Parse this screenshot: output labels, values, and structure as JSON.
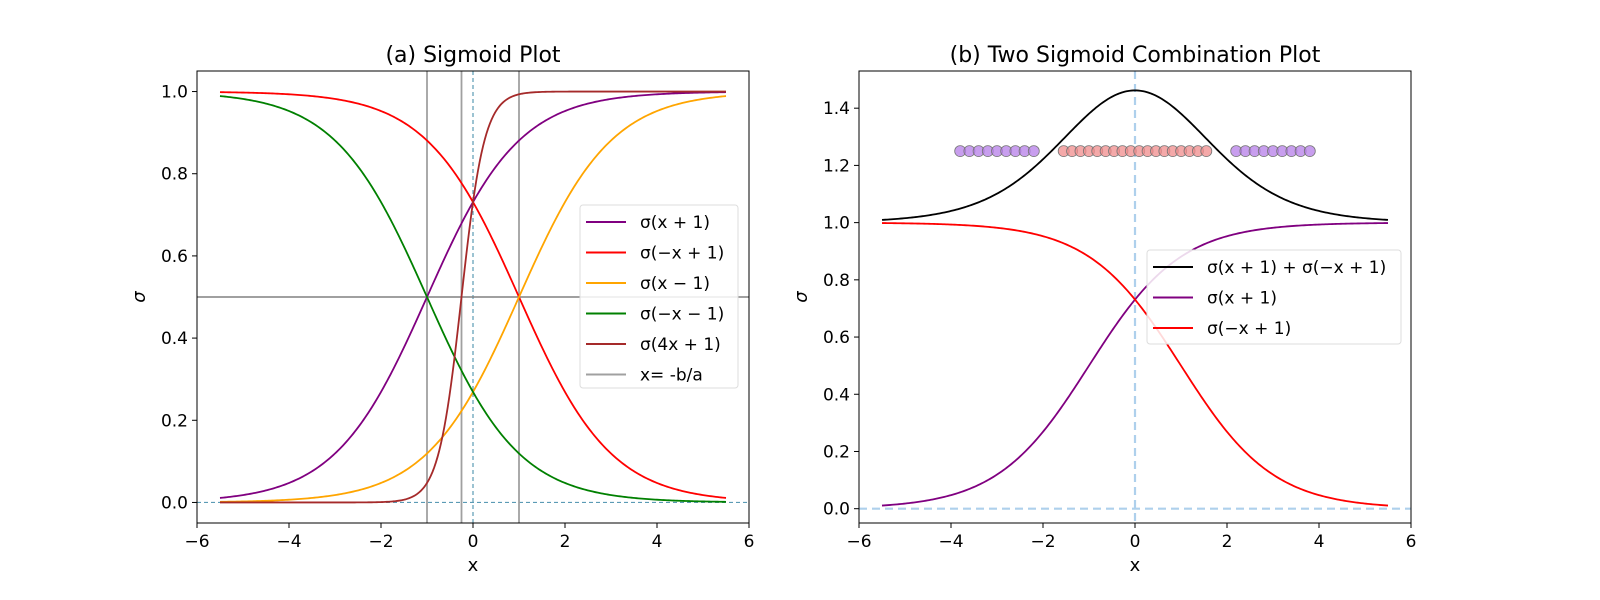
{
  "chart_data": [
    {
      "type": "line",
      "title": "(a) Sigmoid Plot",
      "xlabel": "x",
      "ylabel": "σ",
      "xlim": [
        -6,
        6
      ],
      "ylim": [
        -0.05,
        1.05
      ],
      "xticks": [
        -6,
        -4,
        -2,
        0,
        2,
        4,
        6
      ],
      "yticks": [
        0.0,
        0.2,
        0.4,
        0.6,
        0.8,
        1.0
      ],
      "xtick_labels": [
        "−6",
        "−4",
        "−2",
        "0",
        "2",
        "4",
        "6"
      ],
      "ytick_labels": [
        "0.0",
        "0.2",
        "0.4",
        "0.6",
        "0.8",
        "1.0"
      ],
      "x_range": [
        -5.5,
        5.5
      ],
      "series": [
        {
          "name": "σ(x + 1)",
          "a": 1,
          "b": 1,
          "color": "#800080"
        },
        {
          "name": "σ(−x + 1)",
          "a": -1,
          "b": 1,
          "color": "#ff0000"
        },
        {
          "name": "σ(x − 1)",
          "a": 1,
          "b": -1,
          "color": "#ffa500"
        },
        {
          "name": "σ(−x − 1)",
          "a": -1,
          "b": -1,
          "color": "#008000"
        },
        {
          "name": "σ(4x + 1)",
          "a": 4,
          "b": 1,
          "color": "#a52a2a"
        }
      ],
      "vlines": {
        "name": "x= -b/a",
        "x": [
          -1,
          -0.25,
          1
        ],
        "color": "#a0a0a0"
      },
      "hline": {
        "y": 0.5,
        "color": "#808080"
      },
      "reference_lines": {
        "x": 0,
        "y": 0,
        "color": "#5b9bb5",
        "style": "dashed"
      },
      "legend": "center-right"
    },
    {
      "type": "line",
      "title": "(b) Two Sigmoid Combination Plot",
      "xlabel": "x",
      "ylabel": "σ",
      "xlim": [
        -6,
        6
      ],
      "ylim": [
        -0.05,
        1.53
      ],
      "xticks": [
        -6,
        -4,
        -2,
        0,
        2,
        4,
        6
      ],
      "yticks": [
        0.0,
        0.2,
        0.4,
        0.6,
        0.8,
        1.0,
        1.2,
        1.4
      ],
      "xtick_labels": [
        "−6",
        "−4",
        "−2",
        "0",
        "2",
        "4",
        "6"
      ],
      "ytick_labels": [
        "0.0",
        "0.2",
        "0.4",
        "0.6",
        "0.8",
        "1.0",
        "1.2",
        "1.4"
      ],
      "x_range": [
        -5.5,
        5.5
      ],
      "series": [
        {
          "name": "σ(x + 1) + σ(−x + 1)",
          "sum": [
            [
              1,
              1
            ],
            [
              -1,
              1
            ]
          ],
          "color": "#000000"
        },
        {
          "name": "σ(x + 1)",
          "a": 1,
          "b": 1,
          "color": "#800080"
        },
        {
          "name": "σ(−x + 1)",
          "a": -1,
          "b": 1,
          "color": "#ff0000"
        }
      ],
      "scatter": [
        {
          "y": 1.25,
          "x_from": -3.8,
          "x_to": -2.2,
          "count": 9,
          "color": "#b57ee8"
        },
        {
          "y": 1.25,
          "x_from": -1.55,
          "x_to": 1.55,
          "count": 18,
          "color": "#f08c8c"
        },
        {
          "y": 1.25,
          "x_from": 2.2,
          "x_to": 3.8,
          "count": 9,
          "color": "#b57ee8"
        }
      ],
      "reference_lines": {
        "x": 0,
        "y": 0,
        "color": "#aed0ec",
        "style": "dashed"
      },
      "legend": "center-right"
    }
  ]
}
